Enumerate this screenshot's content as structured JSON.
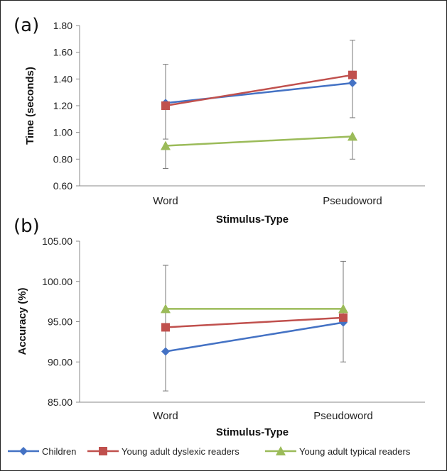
{
  "chart_data": [
    {
      "type": "line",
      "panel_label": "(a)",
      "categories": [
        "Word",
        "Pseudoword"
      ],
      "xlabel": "",
      "ylabel": "Time (seconds)",
      "ylim": [
        0.6,
        1.8
      ],
      "yticks": [
        "0.60",
        "0.80",
        "1.00",
        "1.20",
        "1.40",
        "1.60",
        "1.80"
      ],
      "series": [
        {
          "name": "Children",
          "color": "#4472c4",
          "marker": "diamond",
          "values": [
            1.22,
            1.37
          ],
          "err_low": [
            0.95,
            1.11
          ],
          "err_high": [
            1.51,
            1.69
          ]
        },
        {
          "name": "Young adult dyslexic readers",
          "color": "#c0504d",
          "marker": "square",
          "values": [
            1.2,
            1.43
          ],
          "err_low": null,
          "err_high": null
        },
        {
          "name": "Young adult typical readers",
          "color": "#9bbb59",
          "marker": "triangle",
          "values": [
            0.9,
            0.97
          ],
          "err_low": [
            0.73,
            0.8
          ],
          "err_high": null
        }
      ]
    },
    {
      "type": "line",
      "panel_label": "(b)",
      "categories": [
        "Word",
        "Pseudoword"
      ],
      "xlabel": "Stimulus-Type",
      "ylabel": "Accuracy (%)",
      "ylim": [
        85,
        105
      ],
      "yticks": [
        "85.00",
        "90.00",
        "95.00",
        "100.00",
        "105.00"
      ],
      "series": [
        {
          "name": "Children",
          "color": "#4472c4",
          "marker": "diamond",
          "values": [
            91.3,
            94.9
          ],
          "err_low": [
            86.4,
            90.0
          ],
          "err_high": [
            102.0,
            102.5
          ]
        },
        {
          "name": "Young adult dyslexic readers",
          "color": "#c0504d",
          "marker": "square",
          "values": [
            94.3,
            95.5
          ],
          "err_low": null,
          "err_high": null
        },
        {
          "name": "Young adult typical readers",
          "color": "#9bbb59",
          "marker": "triangle",
          "values": [
            96.6,
            96.6
          ],
          "err_low": null,
          "err_high": null
        }
      ]
    }
  ],
  "panel_a_xlabel": "Stimulus-Type",
  "legend": {
    "position": "bottom",
    "items": [
      {
        "name": "Children",
        "color": "#4472c4",
        "marker": "diamond"
      },
      {
        "name": "Young adult dyslexic readers",
        "color": "#c0504d",
        "marker": "square"
      },
      {
        "name": "Young adult typical readers",
        "color": "#9bbb59",
        "marker": "triangle"
      }
    ]
  }
}
